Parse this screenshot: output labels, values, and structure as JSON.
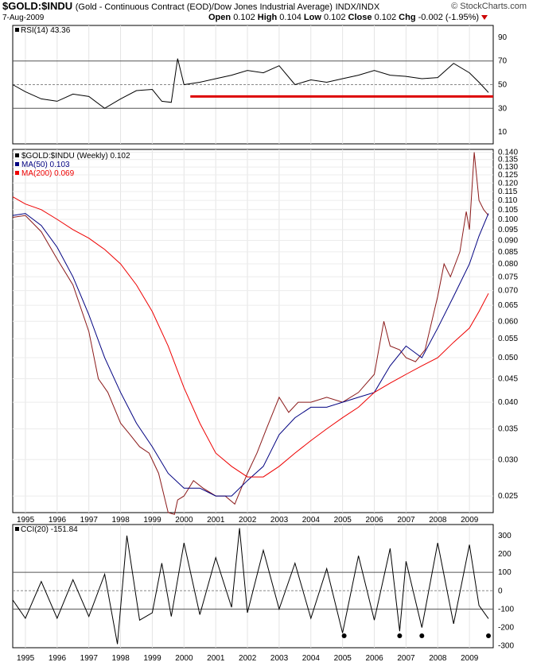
{
  "header": {
    "symbol": "$GOLD:$INDU",
    "description": "(Gold - Continuous Contract (EOD)/Dow Jones Industrial Average)",
    "exchange": "INDX/INDX",
    "date": "7-Aug-2009",
    "watermark": "© StockCharts.com",
    "open_label": "Open",
    "open": "0.102",
    "high_label": "High",
    "high": "0.104",
    "low_label": "Low",
    "low": "0.102",
    "close_label": "Close",
    "close": "0.102",
    "chg_label": "Chg",
    "chg": "-0.002 (-1.95%)"
  },
  "colors": {
    "price": "#000000",
    "price_down": "#8b1a1a",
    "ma50": "#000080",
    "ma200": "#ee0000",
    "support_line": "#dd0000",
    "rsi_ob_fill": "#2e5a2e",
    "rsi_os_fill": "#8b4a4a"
  },
  "chart_data": [
    {
      "type": "line",
      "panel": "rsi",
      "legend": "RSI(14) 43.36",
      "ylim": [
        0,
        100
      ],
      "yticks": [
        10,
        30,
        50,
        70,
        90
      ],
      "reference_lines": [
        30,
        50,
        70
      ],
      "support_line_value": 40,
      "x": [
        1994.6,
        1995.0,
        1995.5,
        1996.0,
        1996.5,
        1997.0,
        1997.5,
        1998.0,
        1998.5,
        1999.0,
        1999.3,
        1999.6,
        1999.8,
        2000.0,
        2000.5,
        2001.0,
        2001.5,
        2002.0,
        2002.5,
        2003.0,
        2003.5,
        2004.0,
        2004.5,
        2005.0,
        2005.5,
        2006.0,
        2006.5,
        2007.0,
        2007.5,
        2008.0,
        2008.5,
        2009.0,
        2009.3,
        2009.6
      ],
      "values": [
        50,
        44,
        38,
        36,
        42,
        40,
        30,
        38,
        45,
        46,
        36,
        35,
        72,
        50,
        52,
        55,
        58,
        62,
        60,
        66,
        50,
        54,
        52,
        55,
        58,
        62,
        58,
        57,
        55,
        56,
        68,
        60,
        52,
        43.36
      ]
    },
    {
      "type": "line",
      "panel": "price",
      "log_scale": true,
      "ylim": [
        0.023,
        0.142
      ],
      "yticks": [
        0.025,
        0.03,
        0.035,
        0.04,
        0.045,
        0.05,
        0.055,
        0.06,
        0.065,
        0.07,
        0.075,
        0.08,
        0.085,
        0.09,
        0.095,
        0.1,
        0.105,
        0.11,
        0.115,
        0.12,
        0.125,
        0.13,
        0.135,
        0.14
      ],
      "xlim": [
        1994.6,
        2009.75
      ],
      "xticks": [
        "1995",
        "1996",
        "1997",
        "1998",
        "1999",
        "2000",
        "2001",
        "2002",
        "2003",
        "2004",
        "2005",
        "2006",
        "2007",
        "2008",
        "2009"
      ],
      "series": [
        {
          "name": "$GOLD:$INDU (Weekly) 0.102",
          "x": [
            1994.6,
            1995.0,
            1995.5,
            1996.0,
            1996.5,
            1997.0,
            1997.3,
            1997.6,
            1998.0,
            1998.3,
            1998.6,
            1998.9,
            1999.2,
            1999.5,
            1999.7,
            1999.8,
            2000.0,
            2000.3,
            2000.6,
            2001.0,
            2001.3,
            2001.6,
            2002.0,
            2002.3,
            2002.6,
            2003.0,
            2003.3,
            2003.6,
            2004.0,
            2004.5,
            2005.0,
            2005.5,
            2006.0,
            2006.3,
            2006.5,
            2006.8,
            2007.0,
            2007.3,
            2007.6,
            2008.0,
            2008.2,
            2008.4,
            2008.7,
            2008.9,
            2009.0,
            2009.15,
            2009.3,
            2009.45,
            2009.6
          ],
          "values": [
            0.101,
            0.102,
            0.094,
            0.082,
            0.072,
            0.057,
            0.045,
            0.042,
            0.036,
            0.034,
            0.032,
            0.031,
            0.028,
            0.023,
            0.0228,
            0.0245,
            0.025,
            0.027,
            0.026,
            0.025,
            0.025,
            0.024,
            0.028,
            0.031,
            0.035,
            0.041,
            0.038,
            0.04,
            0.04,
            0.041,
            0.04,
            0.042,
            0.046,
            0.06,
            0.053,
            0.052,
            0.05,
            0.049,
            0.052,
            0.068,
            0.08,
            0.075,
            0.085,
            0.104,
            0.095,
            0.14,
            0.11,
            0.105,
            0.102
          ]
        },
        {
          "name": "MA(50) 0.103",
          "x": [
            1994.6,
            1995.0,
            1995.5,
            1996.0,
            1996.5,
            1997.0,
            1997.5,
            1998.0,
            1998.5,
            1999.0,
            1999.5,
            2000.0,
            2000.5,
            2001.0,
            2001.5,
            2002.0,
            2002.5,
            2003.0,
            2003.5,
            2004.0,
            2004.5,
            2005.0,
            2005.5,
            2006.0,
            2006.5,
            2007.0,
            2007.5,
            2008.0,
            2008.5,
            2009.0,
            2009.3,
            2009.6
          ],
          "values": [
            0.102,
            0.103,
            0.097,
            0.087,
            0.075,
            0.062,
            0.05,
            0.042,
            0.036,
            0.032,
            0.028,
            0.026,
            0.026,
            0.025,
            0.025,
            0.027,
            0.029,
            0.034,
            0.037,
            0.039,
            0.039,
            0.04,
            0.041,
            0.042,
            0.048,
            0.053,
            0.05,
            0.058,
            0.068,
            0.08,
            0.092,
            0.103
          ]
        },
        {
          "name": "MA(200) 0.069",
          "x": [
            1994.6,
            1995.0,
            1995.5,
            1996.0,
            1996.5,
            1997.0,
            1997.5,
            1998.0,
            1998.5,
            1999.0,
            1999.5,
            2000.0,
            2000.5,
            2001.0,
            2001.5,
            2002.0,
            2002.5,
            2003.0,
            2003.5,
            2004.0,
            2004.5,
            2005.0,
            2005.5,
            2006.0,
            2006.5,
            2007.0,
            2007.5,
            2008.0,
            2008.5,
            2009.0,
            2009.3,
            2009.6
          ],
          "values": [
            0.112,
            0.108,
            0.105,
            0.1,
            0.095,
            0.091,
            0.086,
            0.08,
            0.072,
            0.063,
            0.053,
            0.043,
            0.036,
            0.031,
            0.029,
            0.0275,
            0.0275,
            0.029,
            0.031,
            0.033,
            0.035,
            0.037,
            0.039,
            0.042,
            0.044,
            0.046,
            0.048,
            0.05,
            0.054,
            0.058,
            0.063,
            0.069
          ]
        }
      ]
    },
    {
      "type": "line",
      "panel": "cci",
      "legend": "CCI(20) -151.84",
      "ylim": [
        -310,
        360
      ],
      "yticks": [
        300,
        200,
        100,
        0,
        -100,
        -200,
        -300
      ],
      "reference_lines": [
        100,
        0,
        -100
      ],
      "x": [
        1994.6,
        1995.0,
        1995.5,
        1996.0,
        1996.5,
        1997.0,
        1997.5,
        1997.9,
        1998.2,
        1998.6,
        1999.0,
        1999.3,
        1999.6,
        2000.0,
        2000.5,
        2001.0,
        2001.5,
        2001.75,
        2002.0,
        2002.5,
        2003.0,
        2003.5,
        2004.0,
        2004.5,
        2005.0,
        2005.5,
        2006.0,
        2006.5,
        2006.8,
        2007.0,
        2007.5,
        2008.0,
        2008.5,
        2009.0,
        2009.3,
        2009.6
      ],
      "values": [
        -50,
        -150,
        50,
        -150,
        60,
        -140,
        90,
        -290,
        300,
        -160,
        -120,
        150,
        -140,
        260,
        -130,
        180,
        -90,
        340,
        -120,
        220,
        -100,
        150,
        -150,
        120,
        -230,
        190,
        -160,
        230,
        -220,
        160,
        -200,
        260,
        -180,
        250,
        -80,
        -151.84
      ],
      "markers_x": [
        2005.05,
        2006.8,
        2007.5,
        2009.6
      ],
      "markers_y": [
        -245,
        -245,
        -245,
        -245
      ]
    }
  ]
}
